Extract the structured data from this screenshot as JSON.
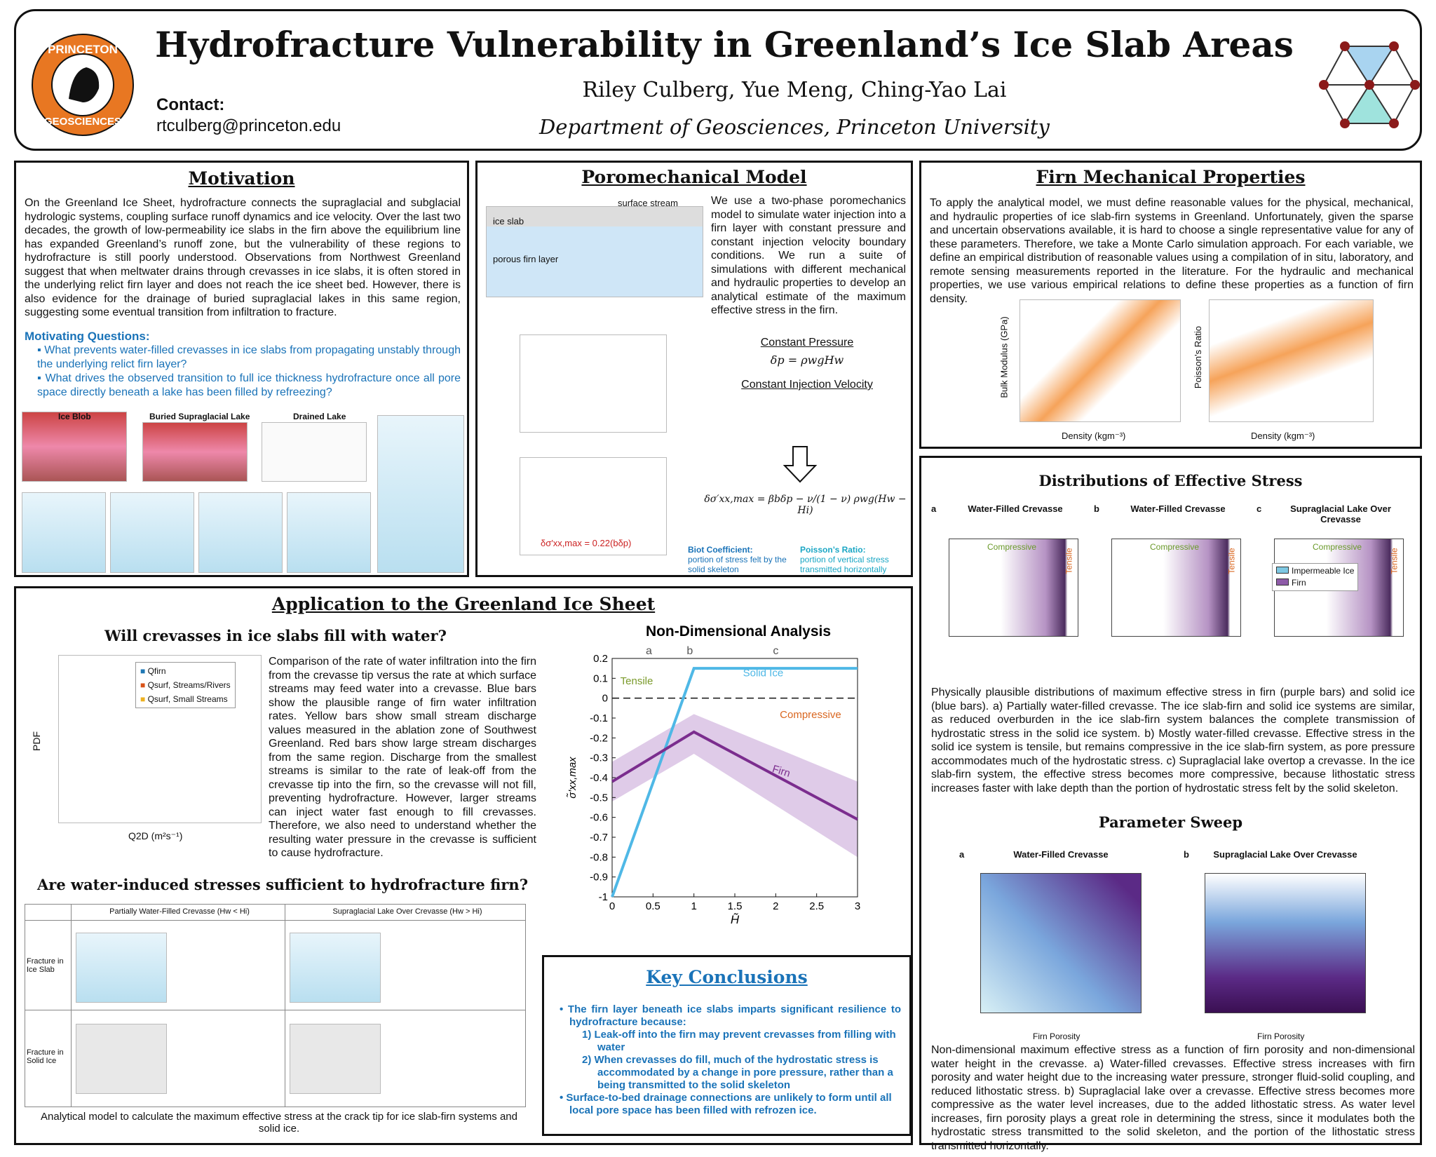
{
  "header": {
    "title": "Hydrofracture Vulnerability in Greenland’s Ice Slab Areas",
    "authors": "Riley Culberg, Yue Meng, Ching-Yao Lai",
    "affiliation": "Department of Geosciences, Princeton University",
    "contact_label": "Contact:",
    "contact_email": "rtculberg@princeton.edu",
    "logo_top": "PRINCETON",
    "logo_bottom": "GEOSCIENCES"
  },
  "motivation": {
    "title": "Motivation",
    "text": "On the Greenland Ice Sheet, hydrofracture connects the supraglacial and subglacial hydrologic systems, coupling surface runoff dynamics and ice velocity. Over the last two decades, the growth of low-permeability ice slabs in the firn above the equilibrium line has expanded Greenland’s runoff zone, but the vulnerability of these regions to hydrofracture is still poorly understood. Observations from Northwest Greenland suggest that when meltwater drains through crevasses in ice slabs, it is often stored in the underlying relict firn layer and does not reach the ice sheet bed. However, there is also evidence for the drainage of buried supraglacial lakes in this same region, suggesting some eventual transition from infiltration to fracture.",
    "questions_title": "Motivating Questions:",
    "questions": [
      "What prevents water-filled crevasses in ice slabs from propagating unstably through the underlying relict firn layer?",
      "What drives the observed transition to full ice thickness hydrofracture once all pore space directly beneath a lake has been filled by refreezing?"
    ],
    "figure_labels": [
      "Ice Blob",
      "Buried Supraglacial Lake",
      "Drained Lake"
    ]
  },
  "poromechanical": {
    "title": "Poromechanical Model",
    "text": "We use a two-phase poromechanics model to simulate water injection into a firn layer with constant pressure and constant injection velocity boundary conditions. We run a suite of simulations with different mechanical and hydraulic properties to develop an analytical estimate of the maximum effective stress in the firn.",
    "labels": {
      "ice_slab": "ice slab",
      "porous_firn": "porous firn layer",
      "surface_stream": "surface stream"
    },
    "constant_pressure": "Constant Pressure",
    "eq_pressure": "δp = ρwgHw",
    "constant_injection": "Constant Injection Velocity",
    "eq_stress": "δσ′xx,max = βbδp − ν/(1 − ν) ρwg(Hw − Hi)",
    "fit_label": "δσ′xx,max = 0.22(bδp)",
    "biot_title": "Biot Coefficient:",
    "biot_text": "portion of stress felt by the solid skeleton",
    "poisson_title": "Poisson’s Ratio:",
    "poisson_text": "portion of vertical stress transmitted horizontally"
  },
  "firn": {
    "title": "Firn Mechanical Properties",
    "text": "To apply the analytical model, we must define reasonable values for the physical, mechanical, and hydraulic properties of ice slab-firn systems in Greenland. Unfortunately, given the sparse and uncertain observations available, it is hard to choose a single representative value for any of these parameters. Therefore, we take a Monte Carlo simulation approach. For each variable, we define an empirical distribution of reasonable values using a compilation of in situ, laboratory, and remote sensing measurements reported in the literature. For the hydraulic and mechanical properties, we use various empirical relations to define these properties as a function of firn density.",
    "left_ylabel": "Bulk Modulus (GPa)",
    "right_ylabel": "Poisson's Ratio",
    "xlabel": "Density (kgm⁻³)"
  },
  "distributions": {
    "title": "Distributions of Effective Stress",
    "panels": [
      {
        "letter": "a",
        "title": "Water-Filled Crevasse"
      },
      {
        "letter": "b",
        "title": "Water-Filled Crevasse"
      },
      {
        "letter": "c",
        "title": "Supraglacial Lake Over Crevasse"
      }
    ],
    "compressive": "Compressive",
    "tensile": "Tensile",
    "legend": [
      "Impermeable Ice",
      "Firn"
    ],
    "caption": "Physically plausible distributions of maximum effective stress in firn (purple bars) and solid ice (blue bars). a) Partially water-filled crevasse. The ice slab-firn and solid ice systems are similar, as reduced overburden in the ice slab-firn system balances the complete transmission of hydrostatic stress in the solid ice system. b) Mostly water-filled crevasse. Effective stress in the solid ice system is tensile, but remains compressive in the ice slab-firn system, as pore pressure accommodates much of the hydrostatic stress. c) Supraglacial lake overtop a crevasse. In the ice slab-firn system, the effective stress becomes more compressive, because lithostatic stress increases faster with lake depth than the portion of hydrostatic stress felt by the solid skeleton."
  },
  "sweep": {
    "title": "Parameter Sweep",
    "panels": [
      {
        "letter": "a",
        "title": "Water-Filled Crevasse"
      },
      {
        "letter": "b",
        "title": "Supraglacial Lake Over Crevasse"
      }
    ],
    "xlabel": "Firn Porosity",
    "caption": "Non-dimensional maximum effective stress as a function of firn porosity and non-dimensional water height in the crevasse. a) Water-filled crevasses. Effective stress increases with firn porosity and water height due to the increasing water pressure, stronger fluid-solid coupling, and reduced lithostatic stress. b) Supraglacial lake over a crevasse. Effective stress becomes more compressive as the water level increases, due to the added lithostatic stress. As water level increases, firn porosity plays a great role in determining the stress, since it modulates both the hydrostatic stress transmitted to the solid skeleton, and the portion of the lithostatic stress transmitted horizontally."
  },
  "application": {
    "title": "Application to the Greenland Ice Sheet",
    "q1_title": "Will crevasses in ice slabs fill with water?",
    "q1_text": "Comparison of the rate of water infiltration into the firn from the crevasse tip versus the rate at which surface streams may feed water into a crevasse. Blue bars show the plausible range of firn water infiltration rates. Yellow bars show small stream discharge values measured in the ablation zone of Southwest Greenland. Red bars show large stream discharges from the same region. Discharge from the smallest streams is similar to the rate of leak-off from the crevasse tip into the firn, so the crevasse will not fill, preventing hydrofracture. However, larger streams can inject water fast enough to fill crevasses. Therefore, we also need to understand whether the resulting water pressure in the crevasse is sufficient to cause hydrofracture.",
    "legend": [
      "Qfirn",
      "Qsurf, Streams/Rivers",
      "Qsurf, Small Streams"
    ],
    "hist_xlabel": "Q2D (m²s⁻¹)",
    "hist_ylabel": "PDF",
    "q2_title": "Are water-induced stresses sufficient to hydrofracture firn?",
    "table_headers": [
      "Partially Water-Filled Crevasse (Hw < Hi)",
      "Supraglacial Lake Over Crevasse (Hw > Hi)"
    ],
    "table_rows": [
      "Fracture in Ice Slab",
      "Fracture in Solid Ice"
    ],
    "caption": "Analytical model to calculate the maximum effective stress at the crack tip for ice slab-firn systems and solid ice."
  },
  "chart_data": {
    "type": "line",
    "title": "Non-Dimensional Analysis",
    "x_label": "H̃",
    "y_label": "σ̃′xx,max",
    "xlim": [
      0,
      3
    ],
    "ylim": [
      -1,
      0.2
    ],
    "xticks": [
      0,
      0.5,
      1,
      1.5,
      2,
      2.5,
      3
    ],
    "yticks": [
      -1,
      -0.9,
      -0.8,
      -0.7,
      -0.6,
      -0.5,
      -0.4,
      -0.3,
      -0.2,
      -0.1,
      0,
      0.1,
      0.2
    ],
    "regions": [
      "a",
      "b",
      "c"
    ],
    "annotations": [
      "Tensile",
      "Compressive"
    ],
    "series": [
      {
        "name": "Solid Ice",
        "color": "#4fb8e6",
        "x": [
          0,
          1,
          3
        ],
        "values": [
          -1,
          0.15,
          0.15
        ]
      },
      {
        "name": "Firn",
        "color": "#7b2d8e",
        "x": [
          0,
          1,
          3
        ],
        "values": [
          -0.42,
          -0.17,
          -0.61
        ]
      }
    ]
  },
  "conclusions": {
    "title": "Key Conclusions",
    "items": [
      "The firn layer beneath ice slabs imparts significant resilience to hydrofracture because:",
      "Surface-to-bed drainage connections are unlikely to form until all local pore space has been filled with refrozen ice."
    ],
    "subitems": [
      "Leak-off into the firn may prevent crevasses from filling with water",
      "When crevasses do fill, much of the hydrostatic stress is accommodated by a change in pore pressure, rather than a being transmitted to the solid skeleton"
    ]
  }
}
